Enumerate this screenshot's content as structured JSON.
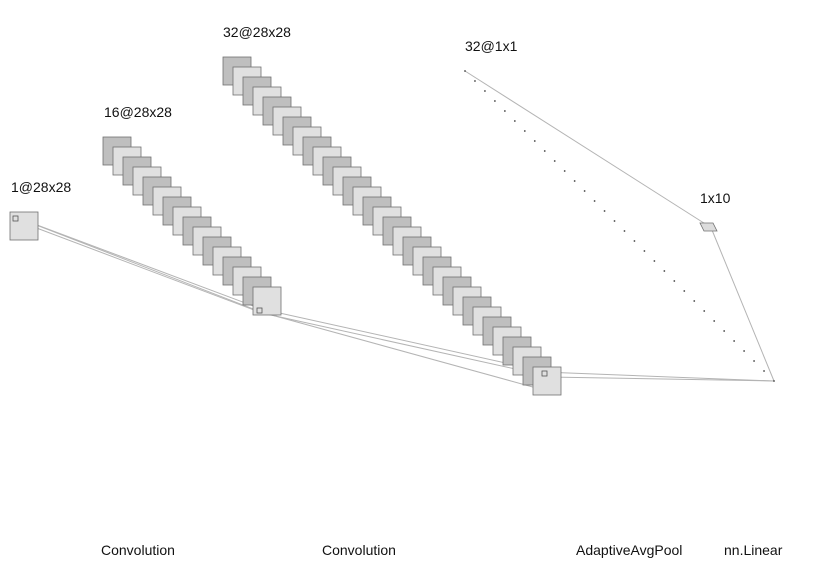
{
  "colors": {
    "background": "#ffffff",
    "dark_fill": "#bfbfbf",
    "light_fill": "#e0e0e0",
    "stroke": "#707070",
    "connector": "#b4b4b4",
    "text": "#111111"
  },
  "layers": [
    {
      "id": "input",
      "label": "1@28x28",
      "maps": 1
    },
    {
      "id": "conv1",
      "label": "16@28x28",
      "maps": 16
    },
    {
      "id": "conv2",
      "label": "32@28x28",
      "maps": 32
    },
    {
      "id": "pool",
      "label": "32@1x1",
      "maps": 32
    },
    {
      "id": "linear",
      "label": "1x10",
      "maps": 1
    }
  ],
  "operations": [
    {
      "id": "op-convolution-1",
      "label": "Convolution"
    },
    {
      "id": "op-convolution-2",
      "label": "Convolution"
    },
    {
      "id": "op-adaptive-avg-pool",
      "label": "AdaptiveAvgPool"
    },
    {
      "id": "op-nn-linear",
      "label": "nn.Linear"
    }
  ]
}
